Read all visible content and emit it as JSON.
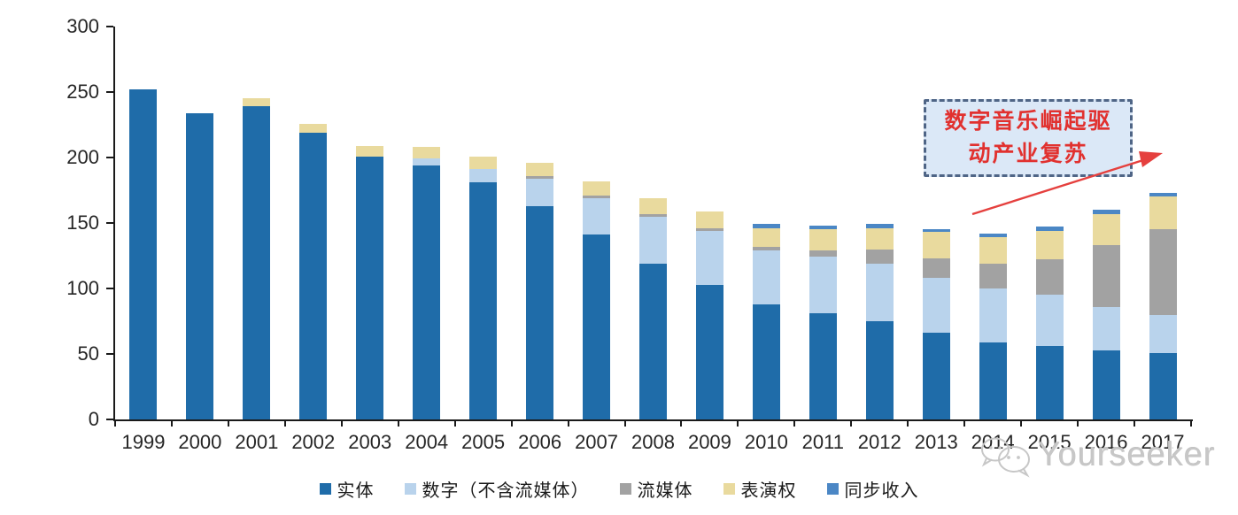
{
  "chart_data": {
    "type": "bar",
    "stacked": true,
    "title": "",
    "xlabel": "",
    "ylabel": "",
    "ylim": [
      0,
      300
    ],
    "y_ticks": [
      0,
      50,
      100,
      150,
      200,
      250,
      300
    ],
    "grid": false,
    "legend_position": "bottom-center",
    "categories": [
      "1999",
      "2000",
      "2001",
      "2002",
      "2003",
      "2004",
      "2005",
      "2006",
      "2007",
      "2008",
      "2009",
      "2010",
      "2011",
      "2012",
      "2013",
      "2014",
      "2015",
      "2016",
      "2017"
    ],
    "series": [
      {
        "key": "physical",
        "name": "实体",
        "color": "#1f6ca9",
        "values": [
          252,
          234,
          239,
          219,
          201,
          194,
          181,
          163,
          141,
          119,
          103,
          88,
          81,
          75,
          66,
          59,
          56,
          53,
          51
        ]
      },
      {
        "key": "digital_excl_streaming",
        "name": "数字（不含流媒体）",
        "color": "#b9d3ec",
        "values": [
          0,
          0,
          0,
          0,
          0,
          5,
          10,
          21,
          28,
          36,
          41,
          41,
          43,
          44,
          42,
          41,
          39,
          33,
          29
        ]
      },
      {
        "key": "streaming",
        "name": "流媒体",
        "color": "#a2a2a2",
        "values": [
          0,
          0,
          0,
          0,
          0,
          0,
          0,
          2,
          2,
          2,
          2,
          3,
          5,
          11,
          15,
          19,
          27,
          47,
          65
        ]
      },
      {
        "key": "performance_rights",
        "name": "表演权",
        "color": "#e9da9e",
        "values": [
          0,
          0,
          6,
          7,
          8,
          9,
          10,
          10,
          11,
          12,
          13,
          14,
          16,
          16,
          20,
          20,
          22,
          24,
          25
        ]
      },
      {
        "key": "sync",
        "name": "同步收入",
        "color": "#4b87c5",
        "values": [
          0,
          0,
          0,
          0,
          0,
          0,
          0,
          0,
          0,
          0,
          0,
          3,
          3,
          3,
          2,
          3,
          3,
          3,
          3
        ]
      }
    ]
  },
  "annotation": {
    "line1": "数字音乐崛起驱",
    "line2": "动产业复苏",
    "text_color": "#e1312f",
    "box_fill": "#dbe8f7",
    "box_border": "#4f6586",
    "arrow_color": "#e5403e"
  },
  "watermark": {
    "text": "Yourseeker",
    "logo": "chat-bubbles-logo",
    "color": "#c7c7c7"
  },
  "colors": {
    "axis": "#1a1a1a",
    "labels": "#262626",
    "background": "#ffffff"
  }
}
